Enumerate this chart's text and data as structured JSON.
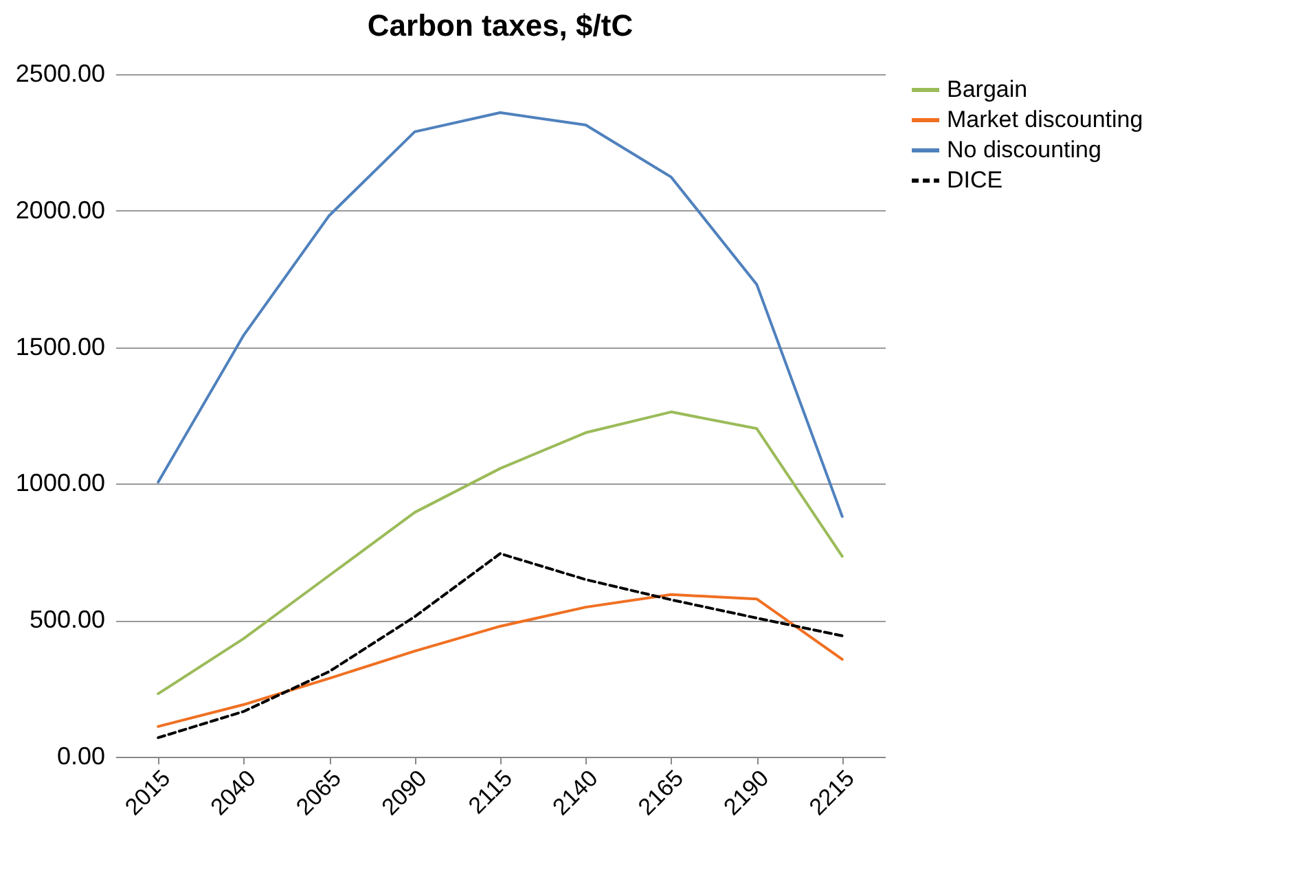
{
  "chart_data": {
    "type": "line",
    "title": "Carbon taxes, $/tC",
    "categories": [
      "2015",
      "2040",
      "2065",
      "2090",
      "2115",
      "2140",
      "2165",
      "2190",
      "2215"
    ],
    "series": [
      {
        "name": "Bargain",
        "color": "#9bbb59",
        "values": [
          231,
          433,
          664,
          895,
          1056,
          1187,
          1263,
          1202,
          734
        ]
      },
      {
        "name": "Market discounting",
        "color": "#f07022",
        "values": [
          111,
          191,
          287,
          387,
          478,
          548,
          594,
          578,
          357
        ]
      },
      {
        "name": "No discounting",
        "color": "#4f81bd",
        "values": [
          1006,
          1544,
          1982,
          2289,
          2359,
          2314,
          2123,
          1730,
          880
        ]
      },
      {
        "name": "DICE",
        "color": "#000000",
        "line_style": "dashed",
        "values": [
          70,
          166,
          312,
          513,
          744,
          649,
          575,
          508,
          443
        ]
      }
    ],
    "ylim": [
      0,
      2500
    ],
    "yticks": [
      {
        "value": 0,
        "label": "0.00"
      },
      {
        "value": 500,
        "label": "500.00"
      },
      {
        "value": 1000,
        "label": "1000.00"
      },
      {
        "value": 1500,
        "label": "1500.00"
      },
      {
        "value": 2000,
        "label": "2000.00"
      },
      {
        "value": 2500,
        "label": "2500.00"
      }
    ],
    "grid": "y",
    "legend": "right",
    "marker": "none",
    "line_style": "solid"
  }
}
